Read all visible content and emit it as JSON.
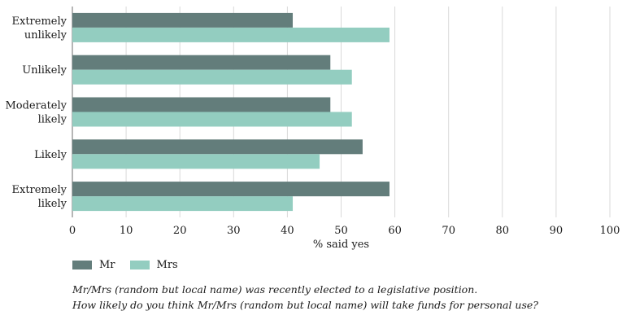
{
  "chart_data": {
    "type": "bar",
    "orientation": "horizontal",
    "categories": [
      [
        "Extremely",
        "unlikely"
      ],
      [
        "Unlikely"
      ],
      [
        "Moderately",
        "likely"
      ],
      [
        "Likely"
      ],
      [
        "Extremely",
        "likely"
      ]
    ],
    "series": [
      {
        "name": "Mr",
        "color": "#637d7b",
        "values": [
          41,
          48,
          48,
          54,
          59
        ]
      },
      {
        "name": "Mrs",
        "color": "#93cdc0",
        "values": [
          59,
          52,
          52,
          46,
          41
        ]
      }
    ],
    "xlabel": "% said yes",
    "ylabel": "",
    "xlim": [
      0,
      100
    ],
    "xticks": [
      0,
      10,
      20,
      30,
      40,
      50,
      60,
      70,
      80,
      90,
      100
    ],
    "grid": "vertical",
    "legend_position": "bottom-left"
  },
  "legend": [
    {
      "label": "Mr",
      "color": "#637d7b"
    },
    {
      "label": "Mrs",
      "color": "#93cdc0"
    }
  ],
  "caption": {
    "line1": "Mr/Mrs (random but local name) was recently elected to a legislative position.",
    "line2": "How likely do you think Mr/Mrs (random but local name) will take funds for personal use?"
  }
}
